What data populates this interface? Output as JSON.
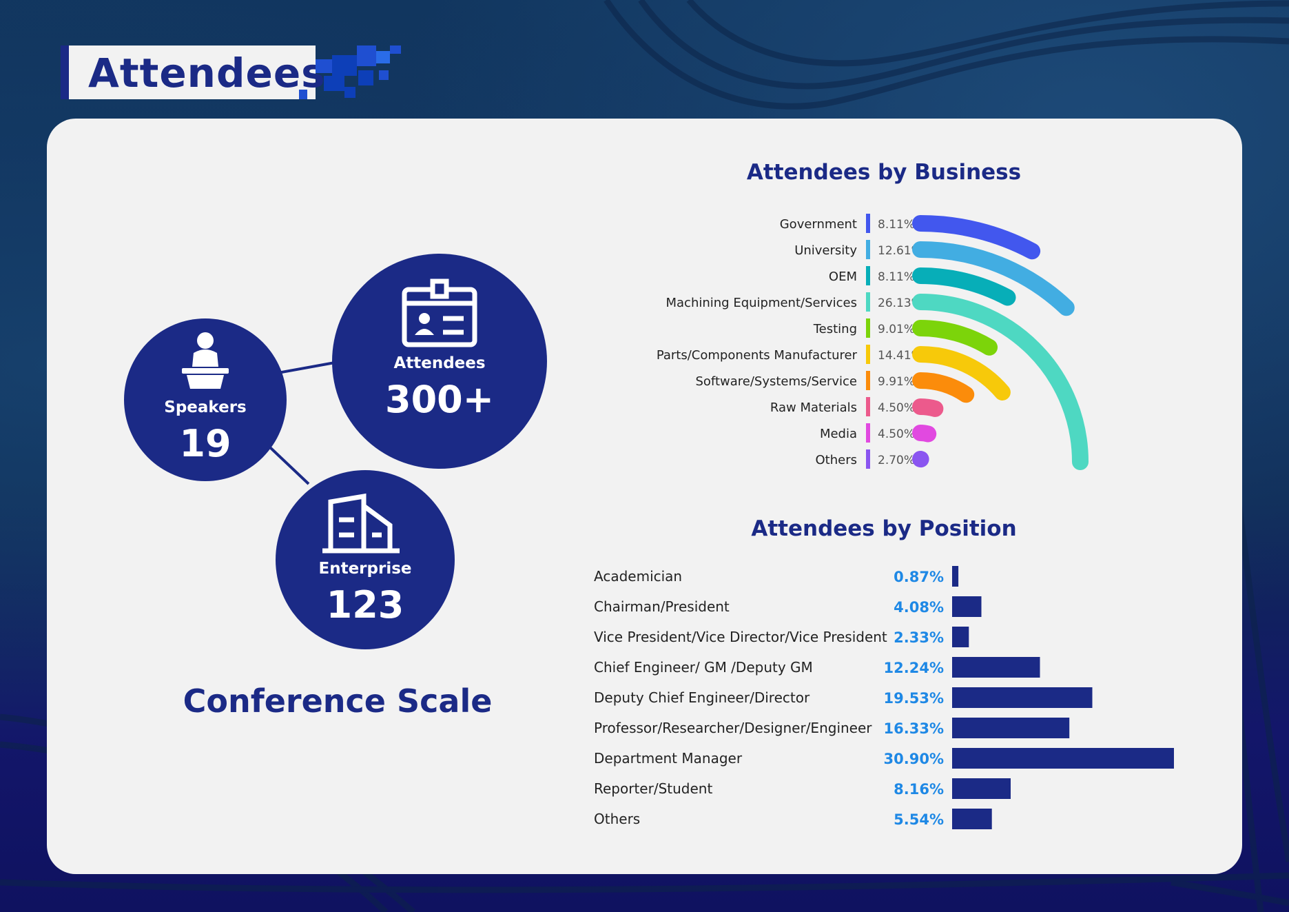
{
  "page": {
    "title": "Attendees"
  },
  "conference_scale": {
    "title": "Conference Scale",
    "speakers": {
      "label": "Speakers",
      "value": "19"
    },
    "attendees": {
      "label": "Attendees",
      "value": "300+"
    },
    "enterprise": {
      "label": "Enterprise",
      "value": "123"
    }
  },
  "colors": {
    "navy": "#1b2a86",
    "accent_blue": "#1e88e5",
    "background_card": "#f2f2f2"
  },
  "chart_data": [
    {
      "type": "radial-bar",
      "title": "Attendees by Business",
      "categories": [
        "Government",
        "University",
        "OEM",
        "Machining Equipment/Services",
        "Testing",
        "Parts/Components Manufacturer",
        "Software/Systems/Service",
        "Raw Materials",
        "Media",
        "Others"
      ],
      "value_labels": [
        "8.11%",
        "12.61%",
        "8.11%",
        "26.13%",
        "9.01%",
        "14.41%",
        "9.91%",
        "4.50%",
        "4.50%",
        "2.70%"
      ],
      "values": [
        8.11,
        12.61,
        8.11,
        26.13,
        9.01,
        14.41,
        9.91,
        4.5,
        4.5,
        2.7
      ],
      "colors": [
        "#4257ee",
        "#42ade2",
        "#07aeb8",
        "#4ed8c2",
        "#7cd40a",
        "#f7c90a",
        "#fb8c0b",
        "#ec5a8c",
        "#e149e0",
        "#8a55f0"
      ]
    },
    {
      "type": "bar",
      "orientation": "horizontal",
      "title": "Attendees by Position",
      "categories": [
        "Academician",
        "Chairman/President",
        "Vice President/Vice Director/Vice President",
        "Chief Engineer/ GM /Deputy GM",
        "Deputy Chief Engineer/Director",
        "Professor/Researcher/Designer/Engineer",
        "Department Manager",
        "Reporter/Student",
        "Others"
      ],
      "value_labels": [
        "0.87%",
        "4.08%",
        "2.33%",
        "12.24%",
        "19.53%",
        "16.33%",
        "30.90%",
        "8.16%",
        "5.54%"
      ],
      "values": [
        0.87,
        4.08,
        2.33,
        12.24,
        19.53,
        16.33,
        30.9,
        8.16,
        5.54
      ],
      "bar_color": "#1b2a86",
      "label_color": "#1e88e5"
    }
  ]
}
